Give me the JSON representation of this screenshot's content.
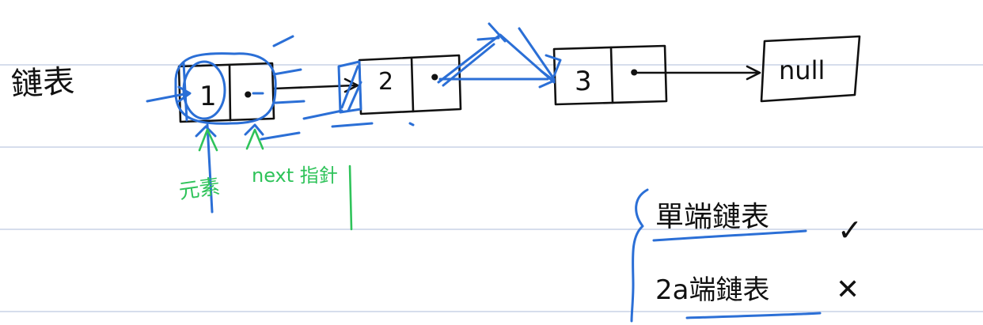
{
  "colors": {
    "ink": "#111111",
    "blue_annotation": "#2b6fd6",
    "green_annotation": "#2fc35a",
    "ruled_line": "#c9d2e6",
    "paper": "#ffffff"
  },
  "title": "鏈表",
  "nodes": [
    {
      "value": "1",
      "pointer_glyph": "•"
    },
    {
      "value": "2",
      "pointer_glyph": "•"
    },
    {
      "value": "3",
      "pointer_glyph": "•"
    }
  ],
  "terminal": "null",
  "labels": {
    "element": "元素",
    "next_pointer": "next 指針"
  },
  "notes": {
    "singly_linked_list": "單端鏈表",
    "singly_mark": "✓",
    "doubly_linked_list": "2a端鏈表",
    "doubly_mark": "✕"
  }
}
